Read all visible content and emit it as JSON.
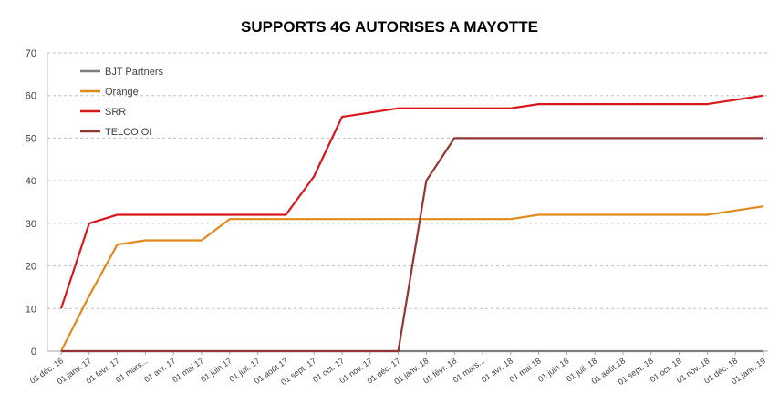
{
  "chart_data": {
    "type": "line",
    "title": "SUPPORTS 4G AUTORISES A MAYOTTE",
    "xlabel": "",
    "ylabel": "",
    "ylim": [
      0,
      70
    ],
    "yticks": [
      0,
      10,
      20,
      30,
      40,
      50,
      60,
      70
    ],
    "grid": true,
    "legend_position": "top-left",
    "categories": [
      "01 déc. 16",
      "01 janv. 17",
      "01 févr. 17",
      "01 mars...",
      "01 avr. 17",
      "01 mai 17",
      "01 juin 17",
      "01 juil. 17",
      "01 août 17",
      "01 sept. 17",
      "01 oct. 17",
      "01 nov. 17",
      "01 déc. 17",
      "01 janv. 18",
      "01 févr. 18",
      "01 mars...",
      "01 avr. 18",
      "01 mai 18",
      "01 juin 18",
      "01 juil. 18",
      "01 août 18",
      "01 sept. 18",
      "01 oct. 18",
      "01 nov. 18",
      "01 déc. 18",
      "01 janv. 19"
    ],
    "series": [
      {
        "name": "BJT Partners",
        "color": "#7f7f7f",
        "values": [
          0,
          0,
          0,
          0,
          0,
          0,
          0,
          0,
          0,
          0,
          0,
          0,
          0,
          0,
          0,
          0,
          0,
          0,
          0,
          0,
          0,
          0,
          0,
          0,
          0,
          0
        ]
      },
      {
        "name": "Orange",
        "color": "#e08a1e",
        "values": [
          0,
          13,
          25,
          26,
          26,
          26,
          31,
          31,
          31,
          31,
          31,
          31,
          31,
          31,
          31,
          31,
          31,
          32,
          32,
          32,
          32,
          32,
          32,
          32,
          33,
          34
        ]
      },
      {
        "name": "SRR",
        "color": "#d9161c",
        "values": [
          10,
          30,
          32,
          32,
          32,
          32,
          32,
          32,
          32,
          41,
          55,
          56,
          57,
          57,
          57,
          57,
          57,
          58,
          58,
          58,
          58,
          58,
          58,
          58,
          59,
          60
        ]
      },
      {
        "name": "TELCO OI",
        "color": "#943634",
        "values": [
          0,
          0,
          0,
          0,
          0,
          0,
          0,
          0,
          0,
          0,
          0,
          0,
          0,
          40,
          50,
          50,
          50,
          50,
          50,
          50,
          50,
          50,
          50,
          50,
          50,
          50
        ]
      }
    ]
  }
}
